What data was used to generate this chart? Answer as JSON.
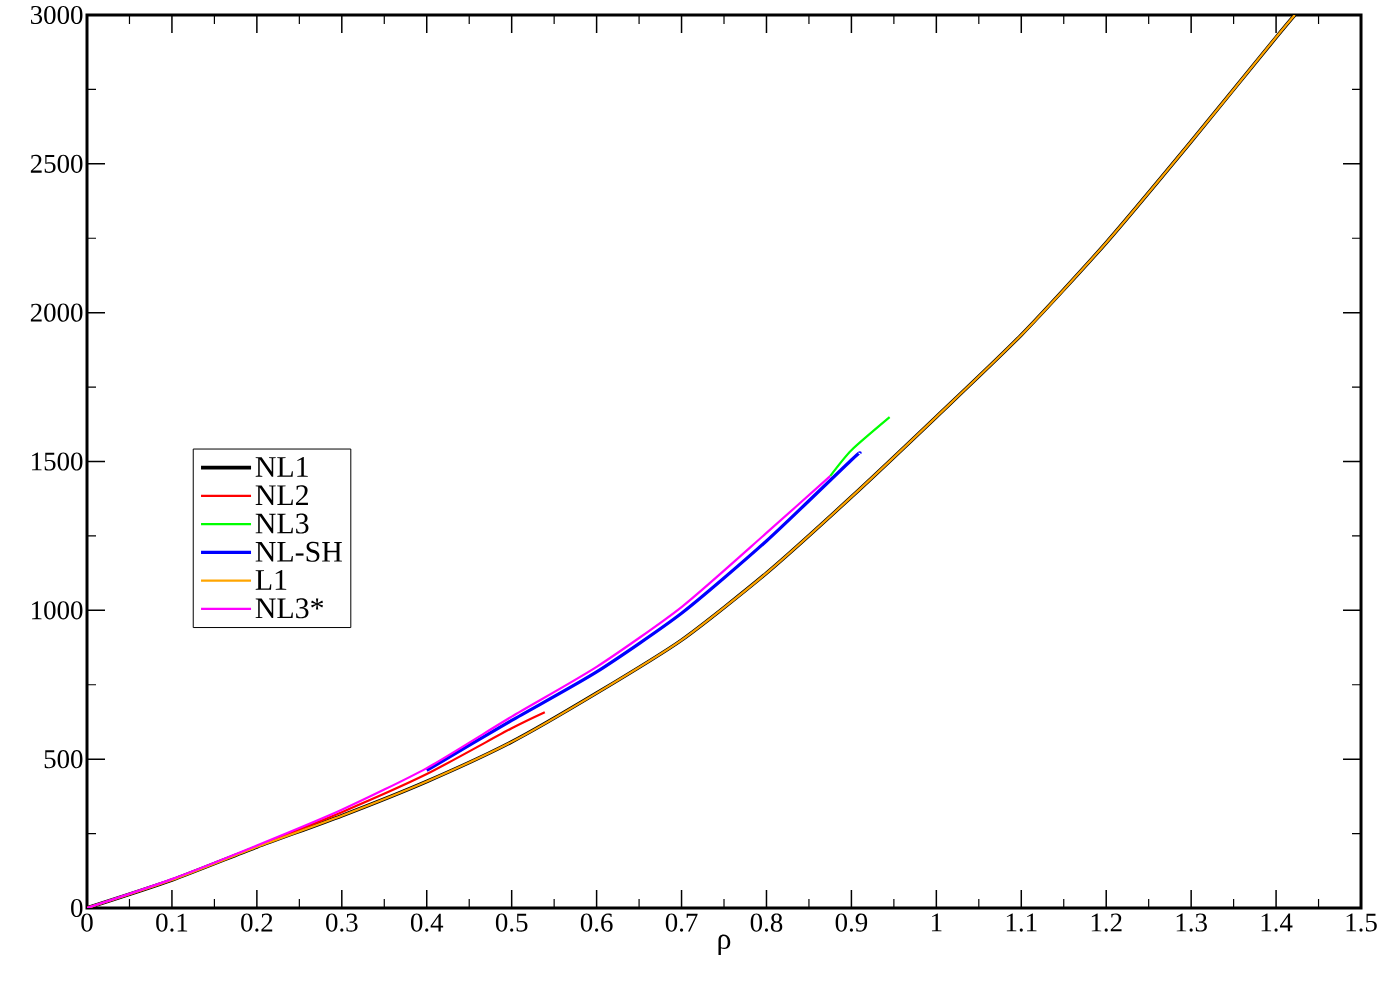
{
  "chart_data": {
    "type": "line",
    "xlabel": "ρ",
    "xlim": [
      0,
      1.5
    ],
    "ylim": [
      0,
      3000
    ],
    "xticks": [
      0,
      0.1,
      0.2,
      0.3,
      0.4,
      0.5,
      0.6,
      0.7,
      0.8,
      0.9,
      1,
      1.1,
      1.2,
      1.3,
      1.4,
      1.5
    ],
    "yticks": [
      0,
      500,
      1000,
      1500,
      2000,
      2500,
      3000
    ],
    "grid": false,
    "legend": "left",
    "marker": "none",
    "line_style": "solid",
    "series": [
      {
        "name": "NL1",
        "color": "#000000",
        "x": [
          0,
          0.1,
          0.2,
          0.3,
          0.4,
          0.5,
          0.6,
          0.7,
          0.8,
          0.9,
          1.0,
          1.1,
          1.2,
          1.3,
          1.4,
          1.422
        ],
        "values": [
          0,
          94,
          205,
          310,
          425,
          558,
          722,
          900,
          1125,
          1381,
          1650,
          1925,
          2235,
          2575,
          2925,
          3000
        ]
      },
      {
        "name": "NL2",
        "color": "#ff0000",
        "x": [
          0,
          0.1,
          0.2,
          0.3,
          0.4,
          0.5,
          0.539
        ],
        "values": [
          0,
          95,
          207,
          322,
          450,
          604,
          658
        ]
      },
      {
        "name": "NL3",
        "color": "#00ff00",
        "x": [
          0.875,
          0.9,
          0.945
        ],
        "values": [
          1451,
          1538,
          1649
        ]
      },
      {
        "name": "NL-SH",
        "color": "#0000ff",
        "x": [
          0.4,
          0.5,
          0.6,
          0.7,
          0.8,
          0.9,
          0.91
        ],
        "values": [
          462,
          630,
          793,
          990,
          1233,
          1505,
          1528
        ]
      },
      {
        "name": "L1",
        "color": "#ffa500",
        "x": [
          0,
          0.1,
          0.2,
          0.3,
          0.4,
          0.5,
          0.6,
          0.7,
          0.8,
          0.9,
          1.0,
          1.1,
          1.2,
          1.3,
          1.4,
          1.422
        ],
        "values": [
          0,
          94,
          205,
          310,
          425,
          558,
          722,
          900,
          1125,
          1381,
          1650,
          1925,
          2235,
          2575,
          2925,
          3000
        ]
      },
      {
        "name": "NL3*",
        "color": "#ff00ff",
        "x": [
          0,
          0.1,
          0.2,
          0.3,
          0.4,
          0.5,
          0.6,
          0.7,
          0.8,
          0.875
        ],
        "values": [
          0,
          97,
          210,
          330,
          470,
          643,
          810,
          1011,
          1260,
          1451
        ]
      }
    ]
  }
}
